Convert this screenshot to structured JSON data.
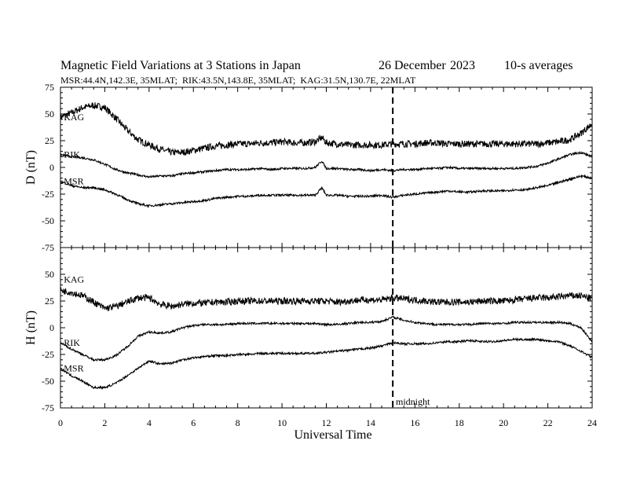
{
  "header": {
    "title": "Magnetic Field Variations at 3 Stations in Japan",
    "date": "26 December",
    "year": "2023",
    "averaging": "10-s averages",
    "stations_line": "MSR:44.4N,142.3E, 35MLAT;  RIK:43.5N,143.8E, 35MLAT;  KAG:31.5N,130.7E, 22MLAT"
  },
  "xaxis": {
    "label": "Universal Time",
    "ticks": [
      "0",
      "2",
      "4",
      "6",
      "8",
      "10",
      "12",
      "14",
      "16",
      "18",
      "20",
      "22",
      "24"
    ]
  },
  "annotation": {
    "text": "midnight"
  },
  "colors": {
    "line": "#000000",
    "background": "#ffffff"
  },
  "chart_data": [
    {
      "type": "line",
      "ylabel": "D (nT)",
      "xlim": [
        0,
        24
      ],
      "ylim": [
        -75,
        75
      ],
      "yticks": [
        "75",
        "50",
        "25",
        "0",
        "-25",
        "-50",
        "-75"
      ],
      "reference_line_x": 15,
      "grid": false,
      "x": [
        0,
        0.5,
        1,
        1.5,
        2,
        2.5,
        3,
        3.5,
        4,
        4.5,
        5,
        5.5,
        6,
        6.5,
        7,
        7.5,
        8,
        8.5,
        9,
        9.5,
        10,
        10.5,
        11,
        11.5,
        11.8,
        12,
        12.5,
        13,
        13.5,
        14,
        14.5,
        15,
        15.5,
        16,
        16.5,
        17,
        17.5,
        18,
        18.5,
        19,
        19.5,
        20,
        20.5,
        21,
        21.5,
        22,
        22.5,
        23,
        23.5,
        24
      ],
      "series": [
        {
          "name": "KAG",
          "values": [
            47,
            51,
            56,
            58,
            56,
            46,
            35,
            26,
            21,
            17,
            14,
            14,
            16,
            18,
            20,
            21,
            22,
            22,
            23,
            23,
            24,
            23,
            23,
            24,
            28,
            23,
            22,
            21,
            21,
            21,
            21,
            22,
            22,
            22,
            23,
            23,
            22,
            22,
            22,
            22,
            22,
            22,
            22,
            22,
            22,
            23,
            24,
            26,
            32,
            41
          ]
        },
        {
          "name": "RIK",
          "values": [
            12,
            10,
            9,
            7,
            3,
            -2,
            -5,
            -7,
            -9,
            -8,
            -8,
            -6,
            -5,
            -4,
            -3,
            -2,
            -2,
            -2,
            -1,
            -2,
            -1,
            -1,
            -1,
            0,
            6,
            -1,
            -1,
            -2,
            -2,
            -3,
            -2,
            -3,
            -2,
            -2,
            -1,
            -1,
            0,
            -1,
            -1,
            -1,
            -1,
            -1,
            -1,
            0,
            1,
            4,
            8,
            12,
            14,
            10
          ]
        },
        {
          "name": "MSR",
          "values": [
            -13,
            -17,
            -19,
            -19,
            -21,
            -25,
            -30,
            -34,
            -36,
            -35,
            -34,
            -33,
            -32,
            -31,
            -29,
            -28,
            -27,
            -27,
            -26,
            -26,
            -26,
            -26,
            -26,
            -26,
            -19,
            -26,
            -26,
            -27,
            -27,
            -27,
            -26,
            -28,
            -26,
            -25,
            -24,
            -23,
            -22,
            -23,
            -23,
            -22,
            -22,
            -22,
            -21,
            -21,
            -19,
            -17,
            -14,
            -11,
            -8,
            -10
          ]
        }
      ]
    },
    {
      "type": "line",
      "ylabel": "H (nT)",
      "xlim": [
        0,
        24
      ],
      "ylim": [
        -75,
        75
      ],
      "yticks": [
        "",
        "50",
        "25",
        "0",
        "-25",
        "-50",
        "-75"
      ],
      "reference_line_x": 15,
      "grid": false,
      "x": [
        0,
        0.5,
        1,
        1.5,
        2,
        2.5,
        3,
        3.5,
        4,
        4.5,
        5,
        5.5,
        6,
        6.5,
        7,
        7.5,
        8,
        8.5,
        9,
        9.5,
        10,
        10.5,
        11,
        11.5,
        12,
        12.5,
        13,
        13.5,
        14,
        14.5,
        15,
        15.5,
        16,
        16.5,
        17,
        17.5,
        18,
        18.5,
        19,
        19.5,
        20,
        20.5,
        21,
        21.5,
        22,
        22.5,
        23,
        23.5,
        24
      ],
      "series": [
        {
          "name": "KAG",
          "values": [
            35,
            33,
            30,
            24,
            18,
            20,
            24,
            28,
            28,
            22,
            20,
            22,
            23,
            23,
            24,
            24,
            25,
            25,
            25,
            25,
            25,
            25,
            25,
            25,
            25,
            24,
            25,
            26,
            26,
            26,
            28,
            27,
            26,
            25,
            24,
            24,
            24,
            24,
            25,
            25,
            25,
            26,
            27,
            28,
            28,
            29,
            30,
            30,
            27
          ]
        },
        {
          "name": "RIK",
          "values": [
            -14,
            -20,
            -25,
            -30,
            -30,
            -26,
            -18,
            -8,
            -4,
            -5,
            -4,
            0,
            2,
            3,
            3,
            3,
            4,
            4,
            4,
            4,
            4,
            4,
            4,
            4,
            3,
            3,
            4,
            5,
            5,
            6,
            10,
            7,
            5,
            4,
            3,
            3,
            3,
            3,
            4,
            4,
            4,
            5,
            5,
            5,
            5,
            5,
            4,
            0,
            -13
          ]
        },
        {
          "name": "MSR",
          "values": [
            -38,
            -45,
            -50,
            -56,
            -56,
            -52,
            -45,
            -38,
            -31,
            -34,
            -33,
            -30,
            -28,
            -27,
            -26,
            -26,
            -25,
            -25,
            -24,
            -24,
            -24,
            -24,
            -24,
            -24,
            -23,
            -22,
            -21,
            -20,
            -19,
            -17,
            -14,
            -15,
            -15,
            -15,
            -14,
            -13,
            -13,
            -12,
            -13,
            -13,
            -12,
            -11,
            -11,
            -11,
            -12,
            -13,
            -17,
            -22,
            -28
          ]
        }
      ]
    }
  ]
}
